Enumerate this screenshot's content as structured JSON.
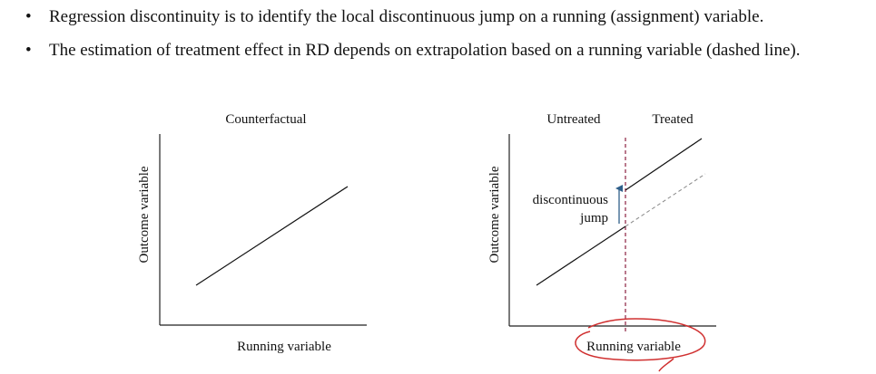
{
  "bullets": [
    "Regression discontinuity is to identify the local discontinuous jump on a running (assignment) variable.",
    "The estimation of treatment effect in RD depends on extrapolation based on a running variable (dashed line)."
  ],
  "bullet_marker": "•",
  "left_diagram": {
    "title": "Counterfactual",
    "y_axis_label": "Outcome variable",
    "x_axis_label": "Running variable"
  },
  "right_diagram": {
    "region_untreated": "Untreated",
    "region_treated": "Treated",
    "y_axis_label": "Outcome variable",
    "x_axis_label": "Running variable",
    "jump_label_line1": "discontinuous",
    "jump_label_line2": "jump",
    "colors": {
      "cutoff_line": "#8b2040",
      "jump_arrow": "#2f5f8a",
      "annotation_circle": "#d03030",
      "extrapolation": "#888888"
    }
  }
}
